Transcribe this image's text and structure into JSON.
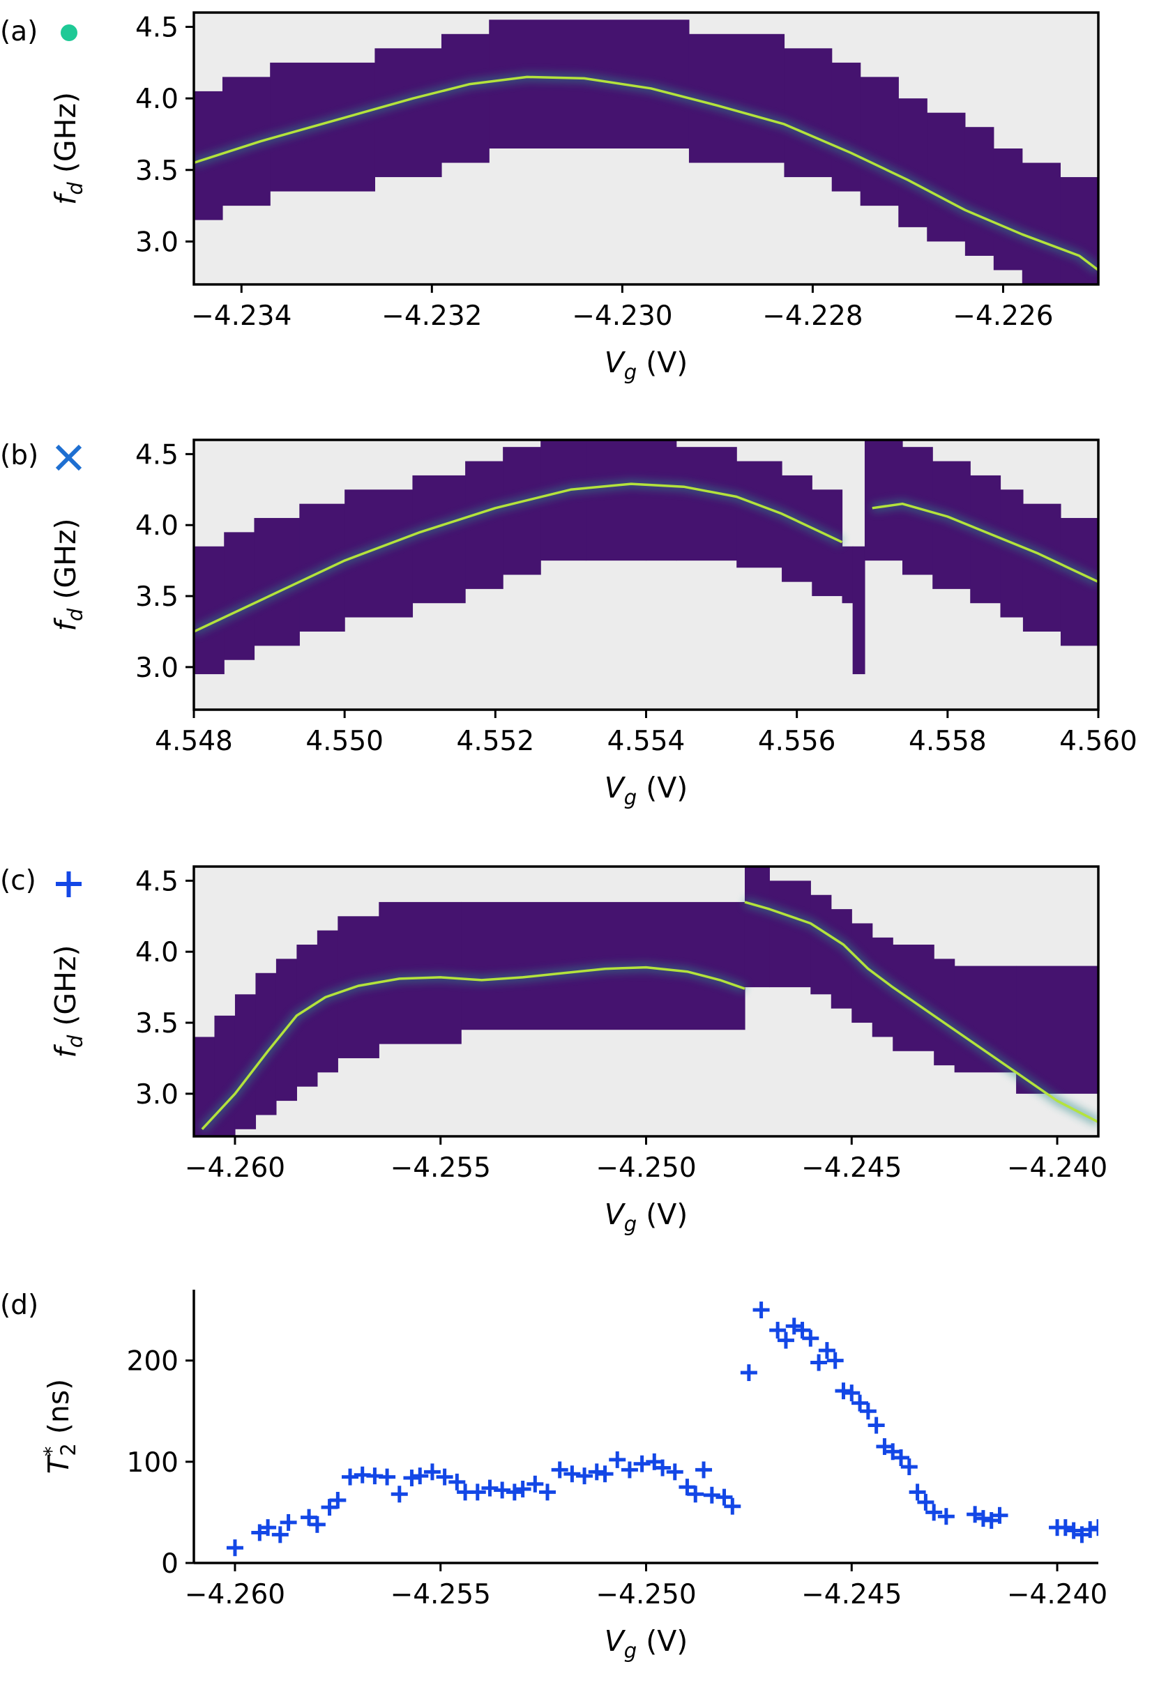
{
  "colors": {
    "background_na": "#ececec",
    "map_base": "#45136f",
    "map_line": "#b4e33c",
    "map_glow": "#2c8c8a",
    "marker_a": "#1ec996",
    "marker_b": "#1e6fd1",
    "marker_c": "#1347e6",
    "scatter": "#1347e6"
  },
  "chart_data": [
    {
      "panel": "(a)",
      "marker": "circle",
      "type": "heatmap",
      "xlabel_main": "V",
      "xlabel_sub": "g",
      "xlabel_unit": " (V)",
      "ylabel_main": "f",
      "ylabel_sub": "d",
      "ylabel_unit": " (GHz)",
      "xlim": [
        -4.2345,
        -4.225
      ],
      "ylim": [
        2.7,
        4.6
      ],
      "xticks": [
        -4.234,
        -4.232,
        -4.23,
        -4.228,
        -4.226
      ],
      "xtick_labels": [
        "−4.234",
        "−4.232",
        "−4.230",
        "−4.228",
        "−4.226"
      ],
      "yticks": [
        3.0,
        3.5,
        4.0,
        4.5
      ],
      "ytick_labels": [
        "3.0",
        "3.5",
        "4.0",
        "4.5"
      ],
      "windows": [
        {
          "x0": -4.2345,
          "x1": -4.2342,
          "lo": 3.15,
          "hi": 4.05
        },
        {
          "x0": -4.2342,
          "x1": -4.2337,
          "lo": 3.25,
          "hi": 4.15
        },
        {
          "x0": -4.2337,
          "x1": -4.2326,
          "lo": 3.35,
          "hi": 4.25
        },
        {
          "x0": -4.2326,
          "x1": -4.2319,
          "lo": 3.45,
          "hi": 4.35
        },
        {
          "x0": -4.2319,
          "x1": -4.2314,
          "lo": 3.55,
          "hi": 4.45
        },
        {
          "x0": -4.2314,
          "x1": -4.2293,
          "lo": 3.65,
          "hi": 4.55
        },
        {
          "x0": -4.2293,
          "x1": -4.2283,
          "lo": 3.55,
          "hi": 4.45
        },
        {
          "x0": -4.2283,
          "x1": -4.2278,
          "lo": 3.45,
          "hi": 4.35
        },
        {
          "x0": -4.2278,
          "x1": -4.2275,
          "lo": 3.35,
          "hi": 4.25
        },
        {
          "x0": -4.2275,
          "x1": -4.2271,
          "lo": 3.25,
          "hi": 4.15
        },
        {
          "x0": -4.2271,
          "x1": -4.2268,
          "lo": 3.1,
          "hi": 4.0
        },
        {
          "x0": -4.2268,
          "x1": -4.2264,
          "lo": 3.0,
          "hi": 3.9
        },
        {
          "x0": -4.2264,
          "x1": -4.2261,
          "lo": 2.9,
          "hi": 3.8
        },
        {
          "x0": -4.2261,
          "x1": -4.2258,
          "lo": 2.8,
          "hi": 3.65
        },
        {
          "x0": -4.2258,
          "x1": -4.2254,
          "lo": 2.7,
          "hi": 3.55
        },
        {
          "x0": -4.2254,
          "x1": -4.225,
          "lo": 2.7,
          "hi": 3.45
        }
      ],
      "resonance": [
        {
          "x": [
            -4.2345,
            -4.2338,
            -4.233,
            -4.2322,
            -4.2316,
            -4.231,
            -4.2304,
            -4.2297,
            -4.229,
            -4.2283,
            -4.2276,
            -4.227,
            -4.2264,
            -4.2258,
            -4.2252,
            -4.225
          ],
          "y": [
            3.55,
            3.7,
            3.85,
            4.0,
            4.1,
            4.15,
            4.14,
            4.07,
            3.95,
            3.82,
            3.62,
            3.43,
            3.22,
            3.05,
            2.9,
            2.8
          ]
        }
      ]
    },
    {
      "panel": "(b)",
      "marker": "x",
      "type": "heatmap",
      "xlabel_main": "V",
      "xlabel_sub": "g",
      "xlabel_unit": " (V)",
      "ylabel_main": "f",
      "ylabel_sub": "d",
      "ylabel_unit": " (GHz)",
      "xlim": [
        4.548,
        4.56
      ],
      "ylim": [
        2.7,
        4.6
      ],
      "xticks": [
        4.548,
        4.55,
        4.552,
        4.554,
        4.556,
        4.558,
        4.56
      ],
      "xtick_labels": [
        "4.548",
        "4.550",
        "4.552",
        "4.554",
        "4.556",
        "4.558",
        "4.560"
      ],
      "yticks": [
        3.0,
        3.5,
        4.0,
        4.5
      ],
      "ytick_labels": [
        "3.0",
        "3.5",
        "4.0",
        "4.5"
      ],
      "windows": [
        {
          "x0": 4.548,
          "x1": 4.5484,
          "lo": 2.95,
          "hi": 3.85
        },
        {
          "x0": 4.5484,
          "x1": 4.5488,
          "lo": 3.05,
          "hi": 3.95
        },
        {
          "x0": 4.5488,
          "x1": 4.5494,
          "lo": 3.15,
          "hi": 4.05
        },
        {
          "x0": 4.5494,
          "x1": 4.55,
          "lo": 3.25,
          "hi": 4.15
        },
        {
          "x0": 4.55,
          "x1": 4.5509,
          "lo": 3.35,
          "hi": 4.25
        },
        {
          "x0": 4.5509,
          "x1": 4.5516,
          "lo": 3.45,
          "hi": 4.35
        },
        {
          "x0": 4.5516,
          "x1": 4.5521,
          "lo": 3.55,
          "hi": 4.45
        },
        {
          "x0": 4.5521,
          "x1": 4.5526,
          "lo": 3.65,
          "hi": 4.55
        },
        {
          "x0": 4.5526,
          "x1": 4.5532,
          "lo": 3.75,
          "hi": 4.6
        },
        {
          "x0": 4.5532,
          "x1": 4.554,
          "lo": 3.75,
          "hi": 4.6
        },
        {
          "x0": 4.554,
          "x1": 4.5544,
          "lo": 3.75,
          "hi": 4.6
        },
        {
          "x0": 4.5544,
          "x1": 4.5552,
          "lo": 3.75,
          "hi": 4.55
        },
        {
          "x0": 4.5552,
          "x1": 4.5558,
          "lo": 3.7,
          "hi": 4.45
        },
        {
          "x0": 4.5558,
          "x1": 4.5562,
          "lo": 3.6,
          "hi": 4.35
        },
        {
          "x0": 4.5562,
          "x1": 4.5566,
          "lo": 3.5,
          "hi": 4.25
        },
        {
          "x0": 4.5566,
          "x1": 4.55674,
          "lo": 3.45,
          "hi": 3.85
        },
        {
          "x0": 4.55674,
          "x1": 4.5569,
          "lo": 2.95,
          "hi": 3.85
        },
        {
          "x0": 4.5569,
          "x1": 4.5574,
          "lo": 3.75,
          "hi": 4.6
        },
        {
          "x0": 4.5574,
          "x1": 4.5578,
          "lo": 3.65,
          "hi": 4.55
        },
        {
          "x0": 4.5578,
          "x1": 4.5583,
          "lo": 3.55,
          "hi": 4.45
        },
        {
          "x0": 4.5583,
          "x1": 4.5587,
          "lo": 3.45,
          "hi": 4.35
        },
        {
          "x0": 4.5587,
          "x1": 4.559,
          "lo": 3.35,
          "hi": 4.25
        },
        {
          "x0": 4.559,
          "x1": 4.5595,
          "lo": 3.25,
          "hi": 4.15
        },
        {
          "x0": 4.5595,
          "x1": 4.56,
          "lo": 3.15,
          "hi": 4.05
        }
      ],
      "resonance": [
        {
          "x": [
            4.548,
            4.549,
            4.55,
            4.551,
            4.552,
            4.553,
            4.5538,
            4.5545,
            4.5552,
            4.5558,
            4.5562,
            4.5566
          ],
          "y": [
            3.25,
            3.5,
            3.75,
            3.95,
            4.12,
            4.25,
            4.29,
            4.27,
            4.2,
            4.08,
            3.98,
            3.88
          ]
        },
        {
          "x": [
            4.557,
            4.5574,
            4.558,
            4.5586,
            4.5592,
            4.56
          ],
          "y": [
            4.12,
            4.15,
            4.06,
            3.93,
            3.8,
            3.6
          ]
        }
      ]
    },
    {
      "panel": "(c)",
      "marker": "plus",
      "type": "heatmap",
      "xlabel_main": "V",
      "xlabel_sub": "g",
      "xlabel_unit": " (V)",
      "ylabel_main": "f",
      "ylabel_sub": "d",
      "ylabel_unit": " (GHz)",
      "xlim": [
        -4.261,
        -4.239
      ],
      "ylim": [
        2.7,
        4.6
      ],
      "xticks": [
        -4.26,
        -4.255,
        -4.25,
        -4.245,
        -4.24
      ],
      "xtick_labels": [
        "−4.260",
        "−4.255",
        "−4.250",
        "−4.245",
        "−4.240"
      ],
      "yticks": [
        3.0,
        3.5,
        4.0,
        4.5
      ],
      "ytick_labels": [
        "3.0",
        "3.5",
        "4.0",
        "4.5"
      ],
      "windows": [
        {
          "x0": -4.261,
          "x1": -4.2605,
          "lo": 2.7,
          "hi": 3.4
        },
        {
          "x0": -4.2605,
          "x1": -4.26,
          "lo": 2.7,
          "hi": 3.55
        },
        {
          "x0": -4.26,
          "x1": -4.2595,
          "lo": 2.75,
          "hi": 3.7
        },
        {
          "x0": -4.2595,
          "x1": -4.259,
          "lo": 2.85,
          "hi": 3.85
        },
        {
          "x0": -4.259,
          "x1": -4.2585,
          "lo": 2.95,
          "hi": 3.95
        },
        {
          "x0": -4.2585,
          "x1": -4.258,
          "lo": 3.05,
          "hi": 4.05
        },
        {
          "x0": -4.258,
          "x1": -4.2575,
          "lo": 3.15,
          "hi": 4.15
        },
        {
          "x0": -4.2575,
          "x1": -4.2565,
          "lo": 3.25,
          "hi": 4.25
        },
        {
          "x0": -4.2565,
          "x1": -4.2545,
          "lo": 3.35,
          "hi": 4.35
        },
        {
          "x0": -4.2545,
          "x1": -4.2476,
          "lo": 3.45,
          "hi": 4.35
        },
        {
          "x0": -4.2476,
          "x1": -4.247,
          "lo": 3.75,
          "hi": 4.6
        },
        {
          "x0": -4.247,
          "x1": -4.246,
          "lo": 3.75,
          "hi": 4.5
        },
        {
          "x0": -4.246,
          "x1": -4.2455,
          "lo": 3.7,
          "hi": 4.4
        },
        {
          "x0": -4.2455,
          "x1": -4.245,
          "lo": 3.6,
          "hi": 4.3
        },
        {
          "x0": -4.245,
          "x1": -4.2445,
          "lo": 3.5,
          "hi": 4.2
        },
        {
          "x0": -4.2445,
          "x1": -4.244,
          "lo": 3.4,
          "hi": 4.1
        },
        {
          "x0": -4.244,
          "x1": -4.243,
          "lo": 3.3,
          "hi": 4.05
        },
        {
          "x0": -4.243,
          "x1": -4.2425,
          "lo": 3.2,
          "hi": 3.95
        },
        {
          "x0": -4.2425,
          "x1": -4.241,
          "lo": 3.15,
          "hi": 3.9
        },
        {
          "x0": -4.241,
          "x1": -4.239,
          "lo": 3.0,
          "hi": 3.9
        }
      ],
      "resonance": [
        {
          "x": [
            -4.2608,
            -4.26,
            -4.2592,
            -4.2585,
            -4.2578,
            -4.257,
            -4.256,
            -4.255,
            -4.254,
            -4.253,
            -4.252,
            -4.251,
            -4.25,
            -4.249,
            -4.2482,
            -4.2476
          ],
          "y": [
            2.75,
            3.0,
            3.3,
            3.55,
            3.68,
            3.76,
            3.81,
            3.82,
            3.8,
            3.82,
            3.85,
            3.88,
            3.89,
            3.86,
            3.8,
            3.74
          ]
        },
        {
          "x": [
            -4.2476,
            -4.247,
            -4.246,
            -4.2452,
            -4.2446,
            -4.244,
            -4.243,
            -4.242,
            -4.241,
            -4.24,
            -4.239
          ],
          "y": [
            4.35,
            4.3,
            4.2,
            4.05,
            3.88,
            3.75,
            3.55,
            3.35,
            3.15,
            2.95,
            2.8
          ]
        }
      ]
    },
    {
      "panel": "(d)",
      "type": "scatter",
      "marker": "plus",
      "xlabel_main": "V",
      "xlabel_sub": "g",
      "xlabel_unit": " (V)",
      "ylabel_main": "T",
      "ylabel_sub": "2",
      "ylabel_sup": "*",
      "ylabel_unit": " (ns)",
      "xlim": [
        -4.261,
        -4.239
      ],
      "ylim": [
        0,
        270
      ],
      "xticks": [
        -4.26,
        -4.255,
        -4.25,
        -4.245,
        -4.24
      ],
      "xtick_labels": [
        "−4.260",
        "−4.255",
        "−4.250",
        "−4.245",
        "−4.240"
      ],
      "yticks": [
        0,
        100,
        200
      ],
      "ytick_labels": [
        "0",
        "100",
        "200"
      ],
      "series": [
        {
          "name": "T2*",
          "x": [
            -4.26,
            -4.2594,
            -4.2592,
            -4.2589,
            -4.2587,
            -4.2582,
            -4.258,
            -4.2577,
            -4.2575,
            -4.2572,
            -4.2569,
            -4.2566,
            -4.2563,
            -4.256,
            -4.2557,
            -4.2555,
            -4.2552,
            -4.2549,
            -4.2546,
            -4.2544,
            -4.2541,
            -4.2538,
            -4.2535,
            -4.2532,
            -4.253,
            -4.2527,
            -4.2524,
            -4.2521,
            -4.2518,
            -4.2515,
            -4.2512,
            -4.251,
            -4.2507,
            -4.2504,
            -4.2501,
            -4.2498,
            -4.2496,
            -4.2493,
            -4.249,
            -4.2488,
            -4.2486,
            -4.2484,
            -4.2481,
            -4.2479,
            -4.2475,
            -4.2472,
            -4.2468,
            -4.2466,
            -4.2464,
            -4.2462,
            -4.246,
            -4.2458,
            -4.2456,
            -4.2454,
            -4.2452,
            -4.245,
            -4.2448,
            -4.2446,
            -4.2444,
            -4.2442,
            -4.244,
            -4.2438,
            -4.2436,
            -4.2434,
            -4.2432,
            -4.243,
            -4.2427,
            -4.242,
            -4.2418,
            -4.2416,
            -4.2414,
            -4.24,
            -4.2398,
            -4.2396,
            -4.2394,
            -4.2392,
            -4.239
          ],
          "y": [
            15,
            30,
            35,
            28,
            40,
            45,
            38,
            55,
            62,
            85,
            87,
            86,
            85,
            68,
            84,
            86,
            90,
            85,
            80,
            70,
            70,
            74,
            72,
            70,
            73,
            78,
            70,
            92,
            88,
            86,
            90,
            88,
            102,
            92,
            98,
            100,
            94,
            90,
            75,
            68,
            92,
            67,
            65,
            56,
            188,
            250,
            230,
            220,
            234,
            230,
            222,
            198,
            210,
            200,
            170,
            168,
            158,
            150,
            136,
            115,
            110,
            104,
            95,
            70,
            60,
            50,
            46,
            48,
            44,
            42,
            47,
            35,
            35,
            32,
            28,
            33,
            35
          ]
        }
      ]
    }
  ]
}
